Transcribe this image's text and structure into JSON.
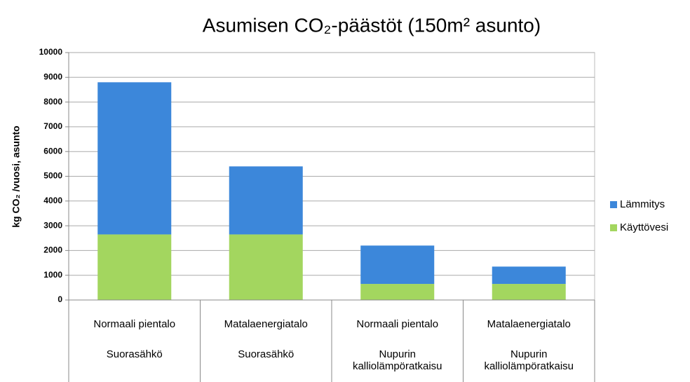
{
  "chart_data": {
    "type": "stacked_bar",
    "title": "Asumisen CO₂-päästöt (150m² asunto)",
    "ylabel": "kg CO₂ /vuosi, asunto",
    "categories": [
      [
        "Normaali pientalo",
        "Suorasähkö"
      ],
      [
        "Matalaenergiatalo",
        "Suorasähkö"
      ],
      [
        "Normaali pientalo",
        "Nupurin kalliolämpöratkaisu"
      ],
      [
        "Matalaenergiatalo",
        "Nupurin kalliolämpöratkaisu"
      ]
    ],
    "series": [
      {
        "name": "Käyttövesi",
        "color": "#a3d65f",
        "values": [
          2650,
          2650,
          650,
          650
        ]
      },
      {
        "name": "Lämmitys",
        "color": "#3c87da",
        "values": [
          6150,
          2750,
          1550,
          700
        ]
      }
    ],
    "ylim": [
      0,
      10000
    ],
    "yticks": [
      0,
      1000,
      2000,
      3000,
      4000,
      5000,
      6000,
      7000,
      8000,
      9000,
      10000
    ],
    "grid": true,
    "legend": "right"
  }
}
